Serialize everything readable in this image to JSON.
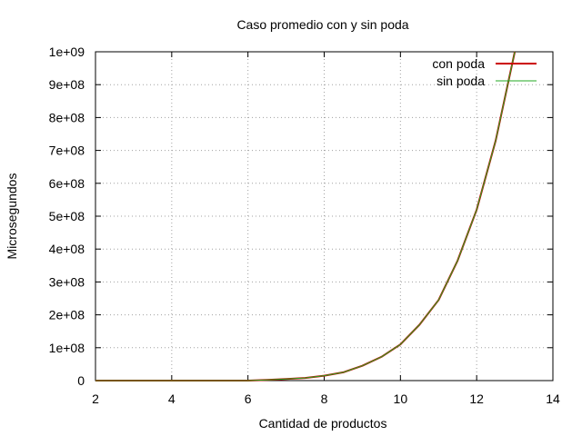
{
  "chart_data": {
    "type": "line",
    "title": "Caso promedio con y sin poda",
    "xlabel": "Cantidad de productos",
    "ylabel": "Microsegundos",
    "xlim": [
      2,
      14
    ],
    "ylim": [
      0,
      1000000000
    ],
    "x_ticks": [
      2,
      4,
      6,
      8,
      10,
      12,
      14
    ],
    "x_tick_labels": [
      "2",
      "4",
      "6",
      "8",
      "10",
      "12",
      "14"
    ],
    "y_ticks": [
      0,
      100000000,
      200000000,
      300000000,
      400000000,
      500000000,
      600000000,
      700000000,
      800000000,
      900000000,
      1000000000
    ],
    "y_tick_labels": [
      "0",
      "1e+08",
      "2e+08",
      "3e+08",
      "4e+08",
      "5e+08",
      "6e+08",
      "7e+08",
      "8e+08",
      "9e+08",
      "1e+09"
    ],
    "grid": true,
    "legend_position": "top-right",
    "series": [
      {
        "name": "con poda",
        "color": "#cc0000",
        "x": [
          2,
          3,
          4,
          5,
          6,
          6.5,
          7,
          7.5,
          8,
          8.5,
          9,
          9.5,
          10,
          10.5,
          11,
          11.5,
          12,
          12.5,
          13
        ],
        "values": [
          0,
          0,
          0,
          0,
          0,
          2000000,
          5000000,
          8000000,
          15000000,
          25000000,
          45000000,
          72000000,
          110000000,
          170000000,
          245000000,
          365000000,
          520000000,
          730000000,
          1000000000
        ]
      },
      {
        "name": "sin poda",
        "color": "#22aa22",
        "x": [
          2,
          3,
          4,
          5,
          6,
          6.5,
          7,
          7.5,
          8,
          8.5,
          9,
          9.5,
          10,
          10.5,
          11,
          11.5,
          12,
          12.5,
          13
        ],
        "values": [
          0,
          0,
          0,
          0,
          0,
          2000000,
          5000000,
          8000000,
          15000000,
          25000000,
          45000000,
          72000000,
          110000000,
          170000000,
          245000000,
          365000000,
          520000000,
          730000000,
          1000000000
        ]
      }
    ]
  }
}
